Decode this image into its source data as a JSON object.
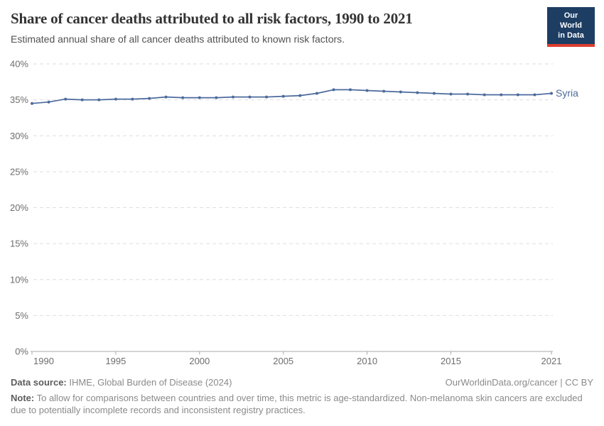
{
  "header": {
    "title": "Share of cancer deaths attributed to all risk factors, 1990 to 2021",
    "subtitle": "Estimated annual share of all cancer deaths attributed to known risk factors.",
    "logo": {
      "line1": "Our World",
      "line2": "in Data"
    }
  },
  "colors": {
    "series_blue": "#4C6A9C",
    "logo_navy": "#1D3D63",
    "logo_red": "#DC3E2F",
    "grid_gray": "#DEDEDE",
    "axis_gray": "#A9A9A9",
    "tick_label_gray": "#6D6D6D"
  },
  "chart_data": {
    "type": "line",
    "title": "Share of cancer deaths attributed to all risk factors, 1990 to 2021",
    "xlabel": "",
    "ylabel": "",
    "xlim": [
      1990,
      2021
    ],
    "ylim": [
      0,
      40
    ],
    "x_ticks": [
      1990,
      1995,
      2000,
      2005,
      2010,
      2015,
      2021
    ],
    "y_ticks": [
      0,
      5,
      10,
      15,
      20,
      25,
      30,
      35,
      40
    ],
    "y_tick_suffix": "%",
    "grid": "horizontal-dashed",
    "legend_position": "end-of-line-label",
    "series": [
      {
        "name": "Syria",
        "color": "#4C6A9C",
        "x": [
          1990,
          1991,
          1992,
          1993,
          1994,
          1995,
          1996,
          1997,
          1998,
          1999,
          2000,
          2001,
          2002,
          2003,
          2004,
          2005,
          2006,
          2007,
          2008,
          2009,
          2010,
          2011,
          2012,
          2013,
          2014,
          2015,
          2016,
          2017,
          2018,
          2019,
          2020,
          2021
        ],
        "values": [
          34.5,
          34.7,
          35.1,
          35.0,
          35.0,
          35.1,
          35.1,
          35.2,
          35.4,
          35.3,
          35.3,
          35.3,
          35.4,
          35.4,
          35.4,
          35.5,
          35.6,
          35.9,
          36.4,
          36.4,
          36.3,
          36.2,
          36.1,
          36.0,
          35.9,
          35.8,
          35.8,
          35.7,
          35.7,
          35.7,
          35.7,
          35.9
        ]
      }
    ]
  },
  "footer": {
    "datasource_label": "Data source:",
    "datasource_value": " IHME, Global Burden of Disease (2024)",
    "link": "OurWorldinData.org/cancer | CC BY",
    "note_label": "Note:",
    "note_value": " To allow for comparisons between countries and over time, this metric is age-standardized. Non-melanoma skin cancers are excluded due to potentially incomplete records and inconsistent registry practices."
  }
}
